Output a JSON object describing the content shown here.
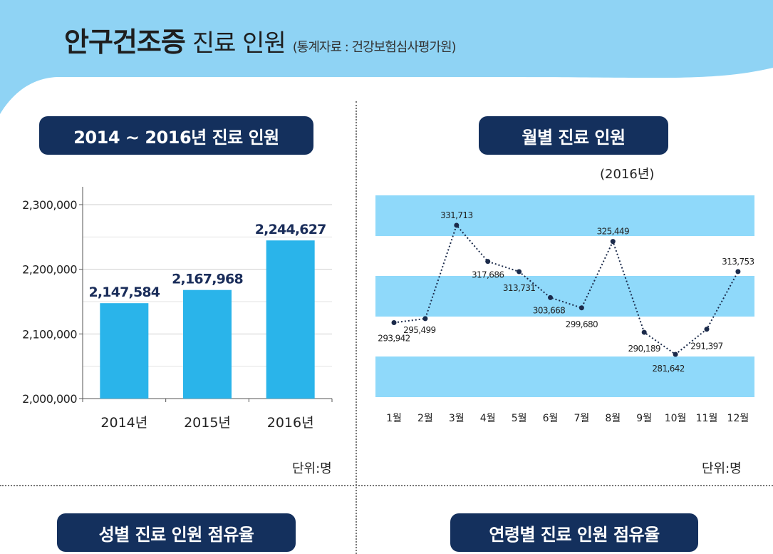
{
  "header": {
    "title": "안구건조증",
    "subtitle": "진료 인원",
    "source": "(통계자료 : 건강보험심사평가원)"
  },
  "sections": {
    "bar_title": "2014 ~ 2016년 진료 인원",
    "line_title": "월별 진료 인원",
    "line_year": "(2016년)",
    "gender_title": "성별 진료 인원 점유율",
    "age_title": "연령별 진료 인원 점유율"
  },
  "units": {
    "bar": "단위:명",
    "line": "단위:명"
  },
  "colors": {
    "banner": "#8fd3f4",
    "bar": "#2ab4ea",
    "band": "#8fd9fa",
    "navy": "#14305d",
    "value_label": "#1a2d5a"
  },
  "chart_data": [
    {
      "type": "bar",
      "categories": [
        "2014년",
        "2015년",
        "2016년"
      ],
      "values": [
        2147584,
        2167968,
        2244627
      ],
      "value_labels": [
        "2,147,584",
        "2,167,968",
        "2,244,627"
      ],
      "ylim": [
        2000000,
        2300000
      ],
      "yticks": [
        2000000,
        2100000,
        2200000,
        2300000
      ],
      "ytick_labels": [
        "2,000,000",
        "2,100,000",
        "2,200,000",
        "2,300,000"
      ],
      "grid": true
    },
    {
      "type": "line",
      "categories": [
        "1월",
        "2월",
        "3월",
        "4월",
        "5월",
        "6월",
        "7월",
        "8월",
        "9월",
        "10월",
        "11월",
        "12월"
      ],
      "values": [
        293942,
        295499,
        331713,
        317686,
        313731,
        303668,
        299680,
        325449,
        290189,
        281642,
        291397,
        313753
      ],
      "value_labels": [
        "293,942",
        "295,499",
        "331,713",
        "317,686",
        "313,731",
        "303,668",
        "299,680",
        "325,449",
        "290,189",
        "281,642",
        "291,397",
        "313,753"
      ],
      "ylim": [
        275000,
        340000
      ]
    }
  ]
}
